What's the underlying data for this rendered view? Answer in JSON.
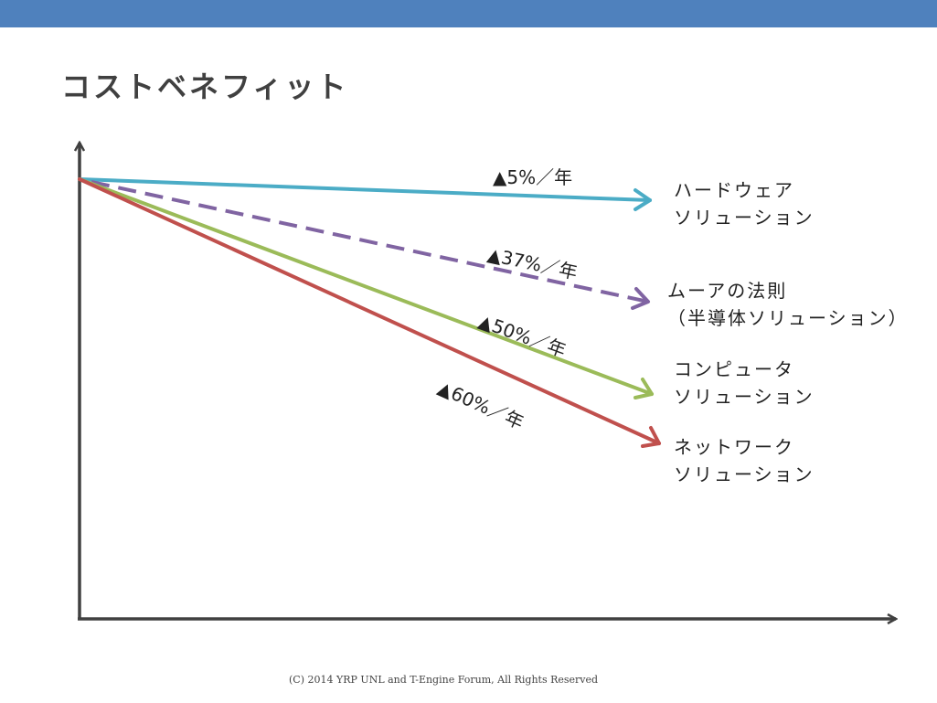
{
  "header": {
    "bar_color": "#4f81bd",
    "title": "コストベネフィット"
  },
  "chart_data": {
    "type": "line",
    "title": "コストベネフィット",
    "xlabel": "",
    "ylabel": "",
    "series": [
      {
        "name": "ハードウェアソリューション",
        "label_lines": [
          "ハードウェア",
          "ソリューション"
        ],
        "rate_label": "▲5%／年",
        "annual_change_percent": -5,
        "color": "#4bacc6",
        "style": "solid"
      },
      {
        "name": "ムーアの法則（半導体ソリューション）",
        "label_lines": [
          "ムーアの法則",
          "（半導体ソリューション）"
        ],
        "rate_label": "▲37%／年",
        "annual_change_percent": -37,
        "color": "#8064a2",
        "style": "dashed"
      },
      {
        "name": "コンピュータソリューション",
        "label_lines": [
          "コンピュータ",
          "ソリューション"
        ],
        "rate_label": "▲50%／年",
        "annual_change_percent": -50,
        "color": "#9bbb59",
        "style": "solid"
      },
      {
        "name": "ネットワークソリューション",
        "label_lines": [
          "ネットワーク",
          "ソリューション"
        ],
        "rate_label": "▲60%／年",
        "annual_change_percent": -60,
        "color": "#c0504d",
        "style": "solid"
      }
    ]
  },
  "footer": {
    "copyright": "(C) 2014 YRP UNL and T-Engine Forum, All Rights Reserved"
  }
}
